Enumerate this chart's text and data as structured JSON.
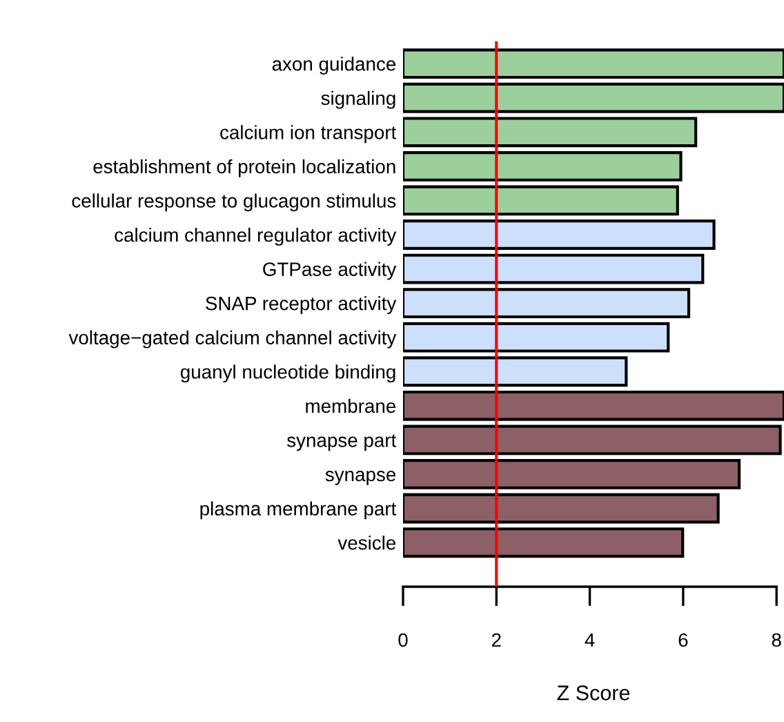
{
  "chart_data": {
    "type": "bar",
    "orientation": "horizontal",
    "xlabel": "Z Score",
    "categories": [
      "axon guidance",
      "signaling",
      "calcium ion transport",
      "establishment of protein localization",
      "cellular response to glucagon stimulus",
      "calcium channel regulator activity",
      "GTPase activity",
      "SNAP receptor activity",
      "voltage−gated calcium channel activity",
      "guanyl nucleotide binding",
      "membrane",
      "synapse part",
      "synapse",
      "plasma membrane part",
      "vesicle"
    ],
    "values": [
      8.16,
      8.16,
      6.27,
      5.95,
      5.88,
      6.66,
      6.42,
      6.12,
      5.68,
      4.78,
      8.16,
      8.08,
      7.2,
      6.75,
      5.99
    ],
    "colors": [
      "#9ccf9c",
      "#9ccf9c",
      "#9ccf9c",
      "#9ccf9c",
      "#9ccf9c",
      "#cce0fb",
      "#cce0fb",
      "#cce0fb",
      "#cce0fb",
      "#cce0fb",
      "#8c6066",
      "#8c6066",
      "#8c6066",
      "#8c6066",
      "#8c6066"
    ],
    "xlim": [
      0,
      8.16
    ],
    "xticks": [
      0,
      2,
      4,
      6,
      8
    ],
    "ref_lines": [
      {
        "axis": "x",
        "value": 2,
        "color": "#ff0000"
      }
    ],
    "grid": false,
    "legend": false
  }
}
